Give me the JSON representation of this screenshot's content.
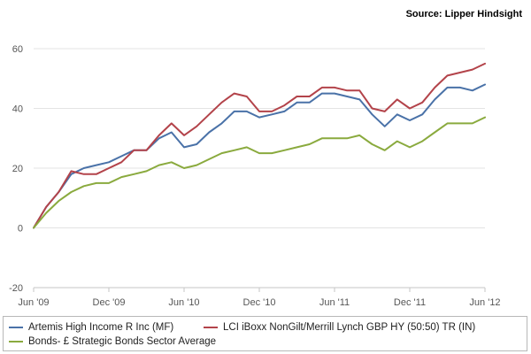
{
  "source": "Source: Lipper Hindsight",
  "chart_data": {
    "type": "line",
    "x": [
      "Jun '09",
      "Dec '09",
      "Jun '10",
      "Dec '10",
      "Jun '11",
      "Dec '11",
      "Jun '12"
    ],
    "xlim": [
      0,
      36
    ],
    "y_ticks": [
      "60",
      "40",
      "20",
      "0",
      "-20"
    ],
    "ylim": [
      -20,
      60
    ],
    "grid": "horizontal",
    "legend_position": "bottom",
    "series": [
      {
        "name": "Artemis High Income R Inc (MF)",
        "color": "#4a72a8",
        "points": [
          [
            0,
            0
          ],
          [
            1,
            7
          ],
          [
            2,
            12
          ],
          [
            3,
            18
          ],
          [
            4,
            20
          ],
          [
            5,
            21
          ],
          [
            6,
            22
          ],
          [
            7,
            24
          ],
          [
            8,
            26
          ],
          [
            9,
            26
          ],
          [
            10,
            30
          ],
          [
            11,
            32
          ],
          [
            12,
            27
          ],
          [
            13,
            28
          ],
          [
            14,
            32
          ],
          [
            15,
            35
          ],
          [
            16,
            39
          ],
          [
            17,
            39
          ],
          [
            18,
            37
          ],
          [
            19,
            38
          ],
          [
            20,
            39
          ],
          [
            21,
            42
          ],
          [
            22,
            42
          ],
          [
            23,
            45
          ],
          [
            24,
            45
          ],
          [
            25,
            44
          ],
          [
            26,
            43
          ],
          [
            27,
            38
          ],
          [
            28,
            34
          ],
          [
            29,
            38
          ],
          [
            30,
            36
          ],
          [
            31,
            38
          ],
          [
            32,
            43
          ],
          [
            33,
            47
          ],
          [
            34,
            47
          ],
          [
            35,
            46
          ],
          [
            36,
            48
          ]
        ]
      },
      {
        "name": "LCI iBoxx NonGilt/Merrill Lynch GBP HY (50:50) TR (IN)",
        "color": "#b3434a",
        "points": [
          [
            0,
            0
          ],
          [
            1,
            7
          ],
          [
            2,
            12
          ],
          [
            3,
            19
          ],
          [
            4,
            18
          ],
          [
            5,
            18
          ],
          [
            6,
            20
          ],
          [
            7,
            22
          ],
          [
            8,
            26
          ],
          [
            9,
            26
          ],
          [
            10,
            31
          ],
          [
            11,
            35
          ],
          [
            12,
            31
          ],
          [
            13,
            34
          ],
          [
            14,
            38
          ],
          [
            15,
            42
          ],
          [
            16,
            45
          ],
          [
            17,
            44
          ],
          [
            18,
            39
          ],
          [
            19,
            39
          ],
          [
            20,
            41
          ],
          [
            21,
            44
          ],
          [
            22,
            44
          ],
          [
            23,
            47
          ],
          [
            24,
            47
          ],
          [
            25,
            46
          ],
          [
            26,
            46
          ],
          [
            27,
            40
          ],
          [
            28,
            39
          ],
          [
            29,
            43
          ],
          [
            30,
            40
          ],
          [
            31,
            42
          ],
          [
            32,
            47
          ],
          [
            33,
            51
          ],
          [
            34,
            52
          ],
          [
            35,
            53
          ],
          [
            36,
            55
          ]
        ]
      },
      {
        "name": "Bonds- £ Strategic Bonds Sector Average",
        "color": "#8aaa3e",
        "points": [
          [
            0,
            0
          ],
          [
            1,
            5
          ],
          [
            2,
            9
          ],
          [
            3,
            12
          ],
          [
            4,
            14
          ],
          [
            5,
            15
          ],
          [
            6,
            15
          ],
          [
            7,
            17
          ],
          [
            8,
            18
          ],
          [
            9,
            19
          ],
          [
            10,
            21
          ],
          [
            11,
            22
          ],
          [
            12,
            20
          ],
          [
            13,
            21
          ],
          [
            14,
            23
          ],
          [
            15,
            25
          ],
          [
            16,
            26
          ],
          [
            17,
            27
          ],
          [
            18,
            25
          ],
          [
            19,
            25
          ],
          [
            20,
            26
          ],
          [
            21,
            27
          ],
          [
            22,
            28
          ],
          [
            23,
            30
          ],
          [
            24,
            30
          ],
          [
            25,
            30
          ],
          [
            26,
            31
          ],
          [
            27,
            28
          ],
          [
            28,
            26
          ],
          [
            29,
            29
          ],
          [
            30,
            27
          ],
          [
            31,
            29
          ],
          [
            32,
            32
          ],
          [
            33,
            35
          ],
          [
            34,
            35
          ],
          [
            35,
            35
          ],
          [
            36,
            37
          ]
        ]
      }
    ]
  }
}
